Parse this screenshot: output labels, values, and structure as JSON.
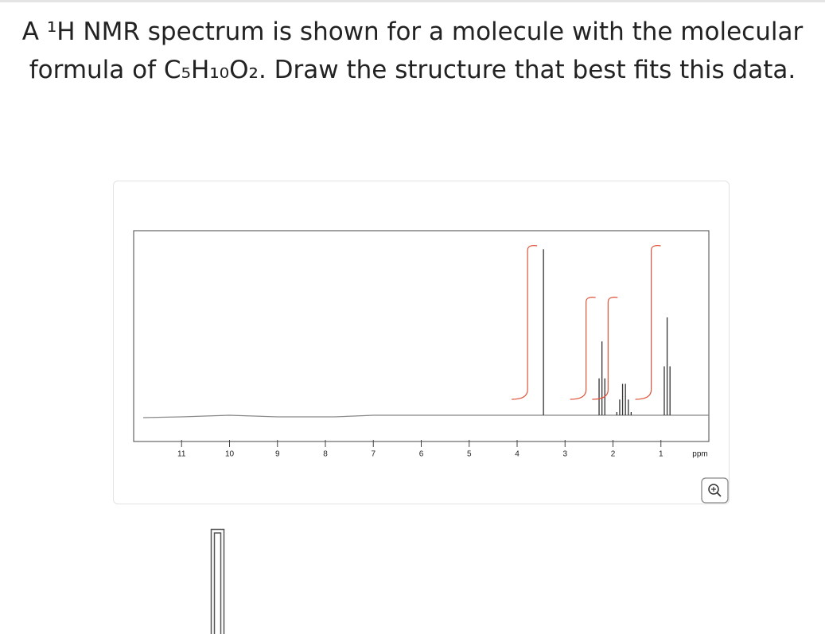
{
  "question": {
    "line1": "A ¹H NMR spectrum is shown for a molecule with the molecular",
    "line2": "formula of C₅H₁₀O₂. Draw the structure that best fits this data."
  },
  "chart_data": {
    "type": "nmr",
    "xlim": [
      12,
      0
    ],
    "xticks": [
      11,
      10,
      9,
      8,
      7,
      6,
      5,
      4,
      3,
      2,
      1
    ],
    "x_unit": "ppm",
    "peaks": [
      {
        "ppm": 3.45,
        "height": 90,
        "lines": 1,
        "integral": 3
      },
      {
        "ppm": 2.23,
        "height": 40,
        "lines": 3,
        "integral": 2
      },
      {
        "ppm": 1.77,
        "height": 17,
        "lines": 6,
        "integral": 2
      },
      {
        "ppm": 0.87,
        "height": 53,
        "lines": 3,
        "integral": 3
      }
    ],
    "color": "#333333",
    "integral_color": "#e0533a"
  }
}
